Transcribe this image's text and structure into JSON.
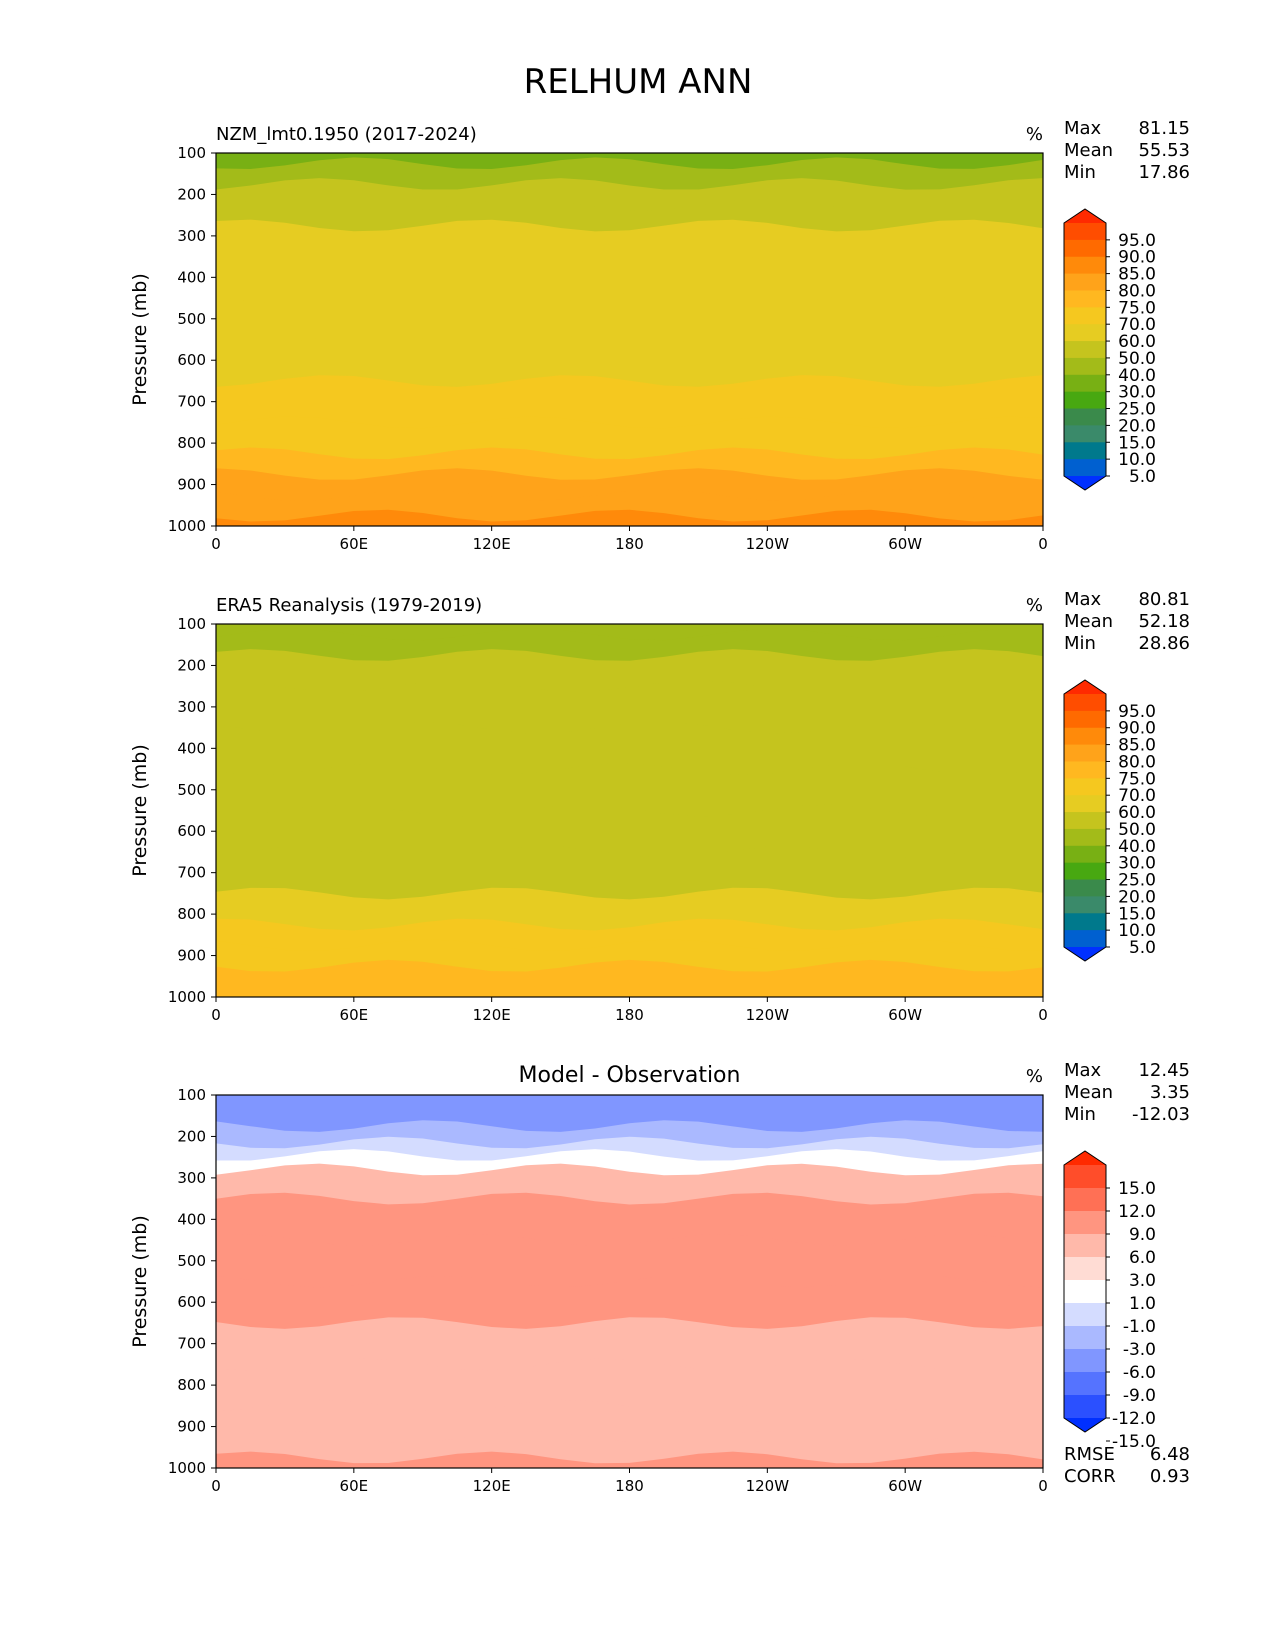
{
  "title": "RELHUM ANN",
  "chart_data": [
    {
      "type": "heatmap",
      "title": "NZM_lmt0.1950 (2017-2024)",
      "units": "%",
      "ylabel": "Pressure (mb)",
      "xlabel": "",
      "xticks": [
        "0",
        "60E",
        "120E",
        "180",
        "120W",
        "60W",
        "0"
      ],
      "yticks": [
        "100",
        "200",
        "300",
        "400",
        "500",
        "600",
        "700",
        "800",
        "900",
        "1000"
      ],
      "ylim": [
        100,
        1000
      ],
      "xlim": [
        0,
        360
      ],
      "stats": [
        {
          "label": "Max",
          "value": "81.15"
        },
        {
          "label": "Mean",
          "value": "55.53"
        },
        {
          "label": "Min",
          "value": "17.86"
        }
      ],
      "colorbar": {
        "levels": [
          "95.0",
          "90.0",
          "85.0",
          "80.0",
          "75.0",
          "70.0",
          "60.0",
          "50.0",
          "40.0",
          "30.0",
          "25.0",
          "20.0",
          "15.0",
          "10.0",
          "5.0"
        ],
        "colors": [
          "#ff2a00",
          "#ff4d00",
          "#ff6a00",
          "#ff8a0a",
          "#ffa31a",
          "#ffb820",
          "#f5c81f",
          "#e6cc22",
          "#c5c41e",
          "#a3bb19",
          "#78b014",
          "#48a811",
          "#3a8a4b",
          "#3a8a6a",
          "#00798c",
          "#0060d0",
          "#0030ff"
        ]
      },
      "bands": [
        {
          "level": 100,
          "value": 27
        },
        {
          "level": 150,
          "value": 32
        },
        {
          "level": 200,
          "value": 40
        },
        {
          "level": 250,
          "value": 48
        },
        {
          "level": 300,
          "value": 56
        },
        {
          "level": 400,
          "value": 57
        },
        {
          "level": 500,
          "value": 55
        },
        {
          "level": 600,
          "value": 56
        },
        {
          "level": 700,
          "value": 60
        },
        {
          "level": 800,
          "value": 65
        },
        {
          "level": 850,
          "value": 70
        },
        {
          "level": 900,
          "value": 75
        },
        {
          "level": 950,
          "value": 78
        },
        {
          "level": 1000,
          "value": 80
        }
      ]
    },
    {
      "type": "heatmap",
      "title": "ERA5 Reanalysis (1979-2019)",
      "units": "%",
      "ylabel": "Pressure (mb)",
      "xlabel": "",
      "xticks": [
        "0",
        "60E",
        "120E",
        "180",
        "120W",
        "60W",
        "0"
      ],
      "yticks": [
        "100",
        "200",
        "300",
        "400",
        "500",
        "600",
        "700",
        "800",
        "900",
        "1000"
      ],
      "ylim": [
        100,
        1000
      ],
      "xlim": [
        0,
        360
      ],
      "stats": [
        {
          "label": "Max",
          "value": "80.81"
        },
        {
          "label": "Mean",
          "value": "52.18"
        },
        {
          "label": "Min",
          "value": "28.86"
        }
      ],
      "colorbar": {
        "levels": [
          "95.0",
          "90.0",
          "85.0",
          "80.0",
          "75.0",
          "70.0",
          "60.0",
          "50.0",
          "40.0",
          "30.0",
          "25.0",
          "20.0",
          "15.0",
          "10.0",
          "5.0"
        ],
        "colors": [
          "#ff2a00",
          "#ff4d00",
          "#ff6a00",
          "#ff8a0a",
          "#ffa31a",
          "#ffb820",
          "#f5c81f",
          "#e6cc22",
          "#c5c41e",
          "#a3bb19",
          "#78b014",
          "#48a811",
          "#3a8a4b",
          "#3a8a6a",
          "#00798c",
          "#0060d0",
          "#0030ff"
        ]
      },
      "bands": [
        {
          "level": 100,
          "value": 35
        },
        {
          "level": 150,
          "value": 38
        },
        {
          "level": 200,
          "value": 42
        },
        {
          "level": 300,
          "value": 45
        },
        {
          "level": 400,
          "value": 44
        },
        {
          "level": 500,
          "value": 43
        },
        {
          "level": 600,
          "value": 45
        },
        {
          "level": 700,
          "value": 49
        },
        {
          "level": 800,
          "value": 56
        },
        {
          "level": 850,
          "value": 62
        },
        {
          "level": 900,
          "value": 68
        },
        {
          "level": 950,
          "value": 72
        },
        {
          "level": 1000,
          "value": 74
        }
      ]
    },
    {
      "type": "heatmap",
      "title": "Model - Observation",
      "units": "%",
      "ylabel": "Pressure (mb)",
      "xlabel": "",
      "xticks": [
        "0",
        "60E",
        "120E",
        "180",
        "120W",
        "60W",
        "0"
      ],
      "yticks": [
        "100",
        "200",
        "300",
        "400",
        "500",
        "600",
        "700",
        "800",
        "900",
        "1000"
      ],
      "ylim": [
        100,
        1000
      ],
      "xlim": [
        0,
        360
      ],
      "stats": [
        {
          "label": "Max",
          "value": "12.45"
        },
        {
          "label": "Mean",
          "value": "3.35"
        },
        {
          "label": "Min",
          "value": "-12.03"
        }
      ],
      "extra_stats": [
        {
          "label": "RMSE",
          "value": "6.48"
        },
        {
          "label": "CORR",
          "value": "0.93"
        }
      ],
      "colorbar": {
        "levels": [
          "15.0",
          "12.0",
          "9.0",
          "6.0",
          "3.0",
          "1.0",
          "-1.0",
          "-3.0",
          "-6.0",
          "-9.0",
          "-12.0",
          "-15.0"
        ],
        "colors": [
          "#ff2a00",
          "#ff4d2a",
          "#ff7055",
          "#ff9580",
          "#ffb9aa",
          "#ffdcd4",
          "#ffffff",
          "#d4dcff",
          "#aab9ff",
          "#8096ff",
          "#5573ff",
          "#2b50ff",
          "#0030ff"
        ]
      },
      "bands": [
        {
          "level": 100,
          "value": -8
        },
        {
          "level": 150,
          "value": -7
        },
        {
          "level": 200,
          "value": -4
        },
        {
          "level": 230,
          "value": -1.5
        },
        {
          "level": 260,
          "value": 0.5
        },
        {
          "level": 300,
          "value": 4
        },
        {
          "level": 400,
          "value": 7
        },
        {
          "level": 500,
          "value": 7
        },
        {
          "level": 600,
          "value": 6
        },
        {
          "level": 700,
          "value": 5
        },
        {
          "level": 800,
          "value": 4.5
        },
        {
          "level": 900,
          "value": 3.5
        },
        {
          "level": 950,
          "value": 5
        },
        {
          "level": 1000,
          "value": 7
        }
      ]
    }
  ]
}
